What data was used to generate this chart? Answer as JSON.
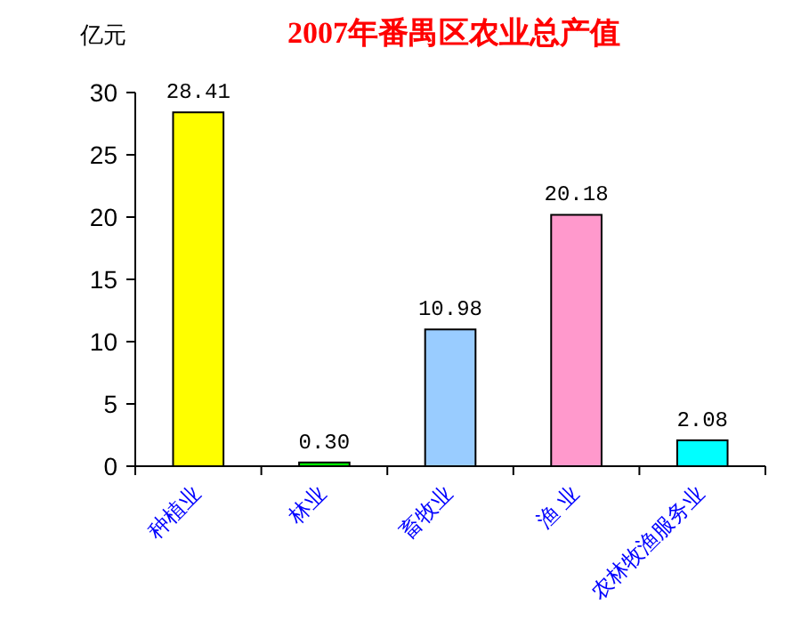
{
  "chart_data": {
    "type": "bar",
    "title": "2007年番禺区农业总产值",
    "ylabel": "亿元",
    "categories": [
      "种植业",
      "林业",
      "畜牧业",
      "渔 业",
      "农林牧渔服务业"
    ],
    "values": [
      28.41,
      0.3,
      10.98,
      20.18,
      2.08
    ],
    "colors": [
      "#ffff00",
      "#00ff00",
      "#99ccff",
      "#ff99cc",
      "#00ffff"
    ],
    "value_labels": [
      "28.41",
      "0.30",
      "10.98",
      "20.18",
      "2.08"
    ],
    "ylim": [
      0,
      30
    ],
    "yticks": [
      0,
      5,
      10,
      15,
      20,
      25,
      30
    ],
    "grid": false
  }
}
